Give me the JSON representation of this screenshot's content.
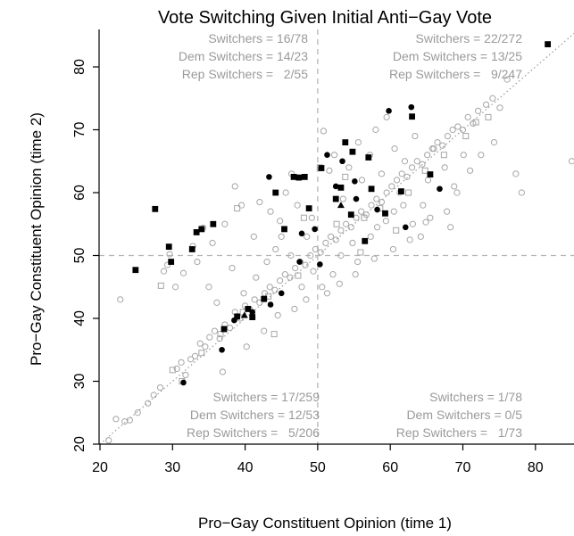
{
  "chart_data": {
    "type": "scatter",
    "title": "Vote Switching Given Initial Anti−Gay Vote",
    "xlabel": "Pro−Gay Constituent Opinion (time 1)",
    "ylabel": "Pro−Gay Constituent Opinion (time 2)",
    "xlim": [
      20,
      85
    ],
    "ylim": [
      20,
      86
    ],
    "x_ticks": [
      20,
      30,
      40,
      50,
      60,
      70,
      80
    ],
    "y_ticks": [
      20,
      30,
      40,
      50,
      60,
      70,
      80
    ],
    "reference_lines": {
      "vertical_x": 50,
      "horizontal_y": 50,
      "diagonal": "y = x"
    },
    "quadrant_annotations": [
      {
        "quadrant": "top-left",
        "lines": [
          "Switchers = 16/78",
          "Dem Switchers = 14/23",
          "Rep Switchers =   2/55"
        ]
      },
      {
        "quadrant": "top-right",
        "lines": [
          "Switchers = 22/272",
          "Dem Switchers = 13/25",
          "Rep Switchers =   9/247"
        ]
      },
      {
        "quadrant": "bottom-left",
        "lines": [
          "Switchers = 17/259",
          "Dem Switchers = 12/53",
          "Rep Switchers =   5/206"
        ]
      },
      {
        "quadrant": "bottom-right",
        "lines": [
          "Switchers = 1/78",
          "Dem Switchers = 0/5",
          "Rep Switchers =   1/73"
        ]
      }
    ],
    "colors": {
      "non_switcher": "#a6a6a6",
      "switcher": "#000000",
      "guide": "#b5b5b5",
      "axis": "#000000"
    },
    "series": [
      {
        "marker": "open-circle",
        "color": "#a6a6a6",
        "points": [
          [
            21.2,
            20.6
          ],
          [
            22.2,
            24
          ],
          [
            22.8,
            43
          ],
          [
            23.4,
            23.6
          ],
          [
            24.1,
            23.8
          ],
          [
            25.2,
            25
          ],
          [
            26.6,
            26.5
          ],
          [
            27.4,
            27.8
          ],
          [
            28.3,
            29
          ],
          [
            28.8,
            47.5
          ],
          [
            29.3,
            48.5
          ],
          [
            29.6,
            50.2
          ],
          [
            30.6,
            32
          ],
          [
            31.2,
            33
          ],
          [
            31.8,
            31
          ],
          [
            32.5,
            33.5
          ],
          [
            33.1,
            34
          ],
          [
            33.8,
            36
          ],
          [
            34.5,
            35.5
          ],
          [
            35.1,
            37
          ],
          [
            35.8,
            38
          ],
          [
            36.5,
            36.8
          ],
          [
            37.2,
            39
          ],
          [
            37.9,
            38.5
          ],
          [
            38.6,
            41
          ],
          [
            39.3,
            40
          ],
          [
            40,
            42
          ],
          [
            40.6,
            41.5
          ],
          [
            41.3,
            43
          ],
          [
            42,
            42.5
          ],
          [
            42.7,
            44
          ],
          [
            43.4,
            45
          ],
          [
            44.1,
            44.5
          ],
          [
            44.8,
            46
          ],
          [
            45.5,
            47
          ],
          [
            46.2,
            46.5
          ],
          [
            46.9,
            48
          ],
          [
            47.6,
            49
          ],
          [
            48.3,
            48.5
          ],
          [
            49,
            50
          ],
          [
            49.7,
            51
          ],
          [
            50.4,
            50.5
          ],
          [
            51.1,
            52
          ],
          [
            51.8,
            53
          ],
          [
            52.5,
            52.5
          ],
          [
            53.2,
            54
          ],
          [
            53.9,
            55
          ],
          [
            54.6,
            54.5
          ],
          [
            55.3,
            56
          ],
          [
            56,
            57
          ],
          [
            56.7,
            56.5
          ],
          [
            57.4,
            58
          ],
          [
            58.1,
            59
          ],
          [
            58.8,
            58.5
          ],
          [
            59.5,
            60
          ],
          [
            60.2,
            61
          ],
          [
            60.9,
            62
          ],
          [
            61.6,
            63
          ],
          [
            62.3,
            62.5
          ],
          [
            63,
            64
          ],
          [
            63.7,
            65
          ],
          [
            64.4,
            64.5
          ],
          [
            65.1,
            66
          ],
          [
            65.8,
            67
          ],
          [
            66.5,
            68
          ],
          [
            67.2,
            67.5
          ],
          [
            67.9,
            69
          ],
          [
            68.6,
            70
          ],
          [
            69.3,
            70.5
          ],
          [
            70,
            70
          ],
          [
            70.7,
            72
          ],
          [
            71.4,
            71
          ],
          [
            72.1,
            73
          ],
          [
            73.2,
            74
          ],
          [
            74.1,
            75
          ],
          [
            75.1,
            73.5
          ],
          [
            76.1,
            78
          ],
          [
            77.3,
            63
          ],
          [
            78.1,
            60
          ],
          [
            85,
            65
          ],
          [
            34.2,
            54.4
          ],
          [
            35.5,
            52
          ],
          [
            37.2,
            55
          ],
          [
            38.6,
            61
          ],
          [
            39.5,
            58
          ],
          [
            41.2,
            53
          ],
          [
            42,
            58.5
          ],
          [
            43.5,
            57
          ],
          [
            44.8,
            55.5
          ],
          [
            45.6,
            60
          ],
          [
            46.4,
            63
          ],
          [
            47.2,
            58
          ],
          [
            48.5,
            53
          ],
          [
            49.2,
            56
          ],
          [
            50.8,
            69.8
          ],
          [
            51.6,
            63.5
          ],
          [
            52.3,
            66
          ],
          [
            53.5,
            59
          ],
          [
            54.3,
            64
          ],
          [
            55.6,
            68
          ],
          [
            56.1,
            62
          ],
          [
            57.2,
            66
          ],
          [
            58,
            70
          ],
          [
            58.8,
            63
          ],
          [
            59.5,
            72
          ],
          [
            60.6,
            67
          ],
          [
            61.3,
            60
          ],
          [
            62,
            65
          ],
          [
            63.4,
            69
          ],
          [
            64.5,
            58
          ],
          [
            65.2,
            62
          ],
          [
            66,
            67
          ],
          [
            67.5,
            64
          ],
          [
            68.8,
            61
          ],
          [
            70.1,
            66
          ],
          [
            71,
            63.5
          ],
          [
            30.4,
            45
          ],
          [
            31.5,
            47.2
          ],
          [
            32.8,
            51.5
          ],
          [
            33.4,
            49
          ],
          [
            35,
            45
          ],
          [
            36.1,
            42.5
          ],
          [
            38.2,
            48
          ],
          [
            39.8,
            44
          ],
          [
            41.5,
            46.5
          ],
          [
            43,
            49
          ],
          [
            44.2,
            51
          ],
          [
            45,
            53
          ],
          [
            46.3,
            50
          ],
          [
            47.8,
            45
          ],
          [
            49.4,
            47.5
          ],
          [
            50.6,
            45
          ],
          [
            52.1,
            47
          ],
          [
            53.2,
            50
          ],
          [
            54.8,
            52
          ],
          [
            55.5,
            49
          ],
          [
            57.3,
            53
          ],
          [
            58.2,
            54.5
          ],
          [
            59.4,
            55.5
          ],
          [
            60.5,
            57
          ],
          [
            61.8,
            58
          ],
          [
            63.1,
            55
          ],
          [
            64.2,
            53
          ],
          [
            65.5,
            56
          ],
          [
            67.8,
            57
          ],
          [
            69.2,
            60
          ],
          [
            72.5,
            66
          ],
          [
            74.3,
            68
          ],
          [
            36.9,
            31.5
          ],
          [
            40.2,
            35.5
          ],
          [
            42.6,
            38
          ],
          [
            44.5,
            40.5
          ],
          [
            46.8,
            41.5
          ],
          [
            48.4,
            43
          ],
          [
            51.3,
            44
          ],
          [
            53,
            45.5
          ],
          [
            55.2,
            47
          ],
          [
            57.8,
            49.5
          ],
          [
            60.4,
            51
          ],
          [
            62.7,
            52.5
          ],
          [
            64.9,
            55.3
          ],
          [
            68.3,
            54.5
          ]
        ]
      },
      {
        "marker": "open-square",
        "color": "#a6a6a6",
        "points": [
          [
            28.4,
            45.2
          ],
          [
            30,
            31.8
          ],
          [
            31.3,
            30
          ],
          [
            34,
            34.5
          ],
          [
            36.6,
            37.5
          ],
          [
            39.7,
            41
          ],
          [
            43.2,
            43.5
          ],
          [
            47.3,
            46.8
          ],
          [
            48.1,
            56
          ],
          [
            50.3,
            64
          ],
          [
            52.6,
            55
          ],
          [
            53.8,
            62.5
          ],
          [
            56.4,
            56
          ],
          [
            58.6,
            57.5
          ],
          [
            62.5,
            60
          ],
          [
            64.8,
            63.5
          ],
          [
            67.4,
            66
          ],
          [
            70.4,
            69
          ],
          [
            71.8,
            71.2
          ],
          [
            73.5,
            72
          ],
          [
            44,
            37.5
          ],
          [
            55.9,
            50.5
          ],
          [
            60.8,
            54
          ],
          [
            38.9,
            57.5
          ]
        ]
      },
      {
        "marker": "filled-circle",
        "color": "#000000",
        "points": [
          [
            31.5,
            29.8
          ],
          [
            36.8,
            35
          ],
          [
            38.5,
            39.7
          ],
          [
            41,
            41
          ],
          [
            43.5,
            42.2
          ],
          [
            45,
            44
          ],
          [
            47.5,
            49
          ],
          [
            49.6,
            54.2
          ],
          [
            50.3,
            48.6
          ],
          [
            51.3,
            66
          ],
          [
            52.5,
            61
          ],
          [
            53.4,
            65
          ],
          [
            55.3,
            59
          ],
          [
            58.2,
            57.3
          ],
          [
            59.8,
            73
          ],
          [
            62.1,
            54.5
          ],
          [
            62.9,
            73.6
          ],
          [
            66.8,
            60.6
          ],
          [
            43.3,
            62.5
          ],
          [
            47.8,
            53.5
          ],
          [
            55.1,
            61.8
          ]
        ]
      },
      {
        "marker": "filled-square",
        "color": "#000000",
        "points": [
          [
            24.9,
            47.7
          ],
          [
            27.6,
            57.4
          ],
          [
            29.5,
            51.4
          ],
          [
            29.8,
            49
          ],
          [
            32.7,
            51
          ],
          [
            33.3,
            53.7
          ],
          [
            34,
            54.2
          ],
          [
            35.6,
            55
          ],
          [
            37.1,
            38.3
          ],
          [
            38.9,
            40.3
          ],
          [
            40.4,
            41.5
          ],
          [
            41,
            40.2
          ],
          [
            42.6,
            43.1
          ],
          [
            44.2,
            60
          ],
          [
            45.4,
            54.2
          ],
          [
            46.7,
            62.5
          ],
          [
            47.4,
            62.4
          ],
          [
            48.2,
            62.5
          ],
          [
            48.8,
            57.5
          ],
          [
            50.5,
            63.9
          ],
          [
            52.5,
            59
          ],
          [
            53.8,
            68
          ],
          [
            54.8,
            66.5
          ],
          [
            57,
            65.6
          ],
          [
            57.4,
            60.6
          ],
          [
            59.3,
            56.7
          ],
          [
            61.5,
            60.2
          ],
          [
            63,
            72.1
          ],
          [
            65.5,
            62.9
          ],
          [
            81.7,
            83.6
          ],
          [
            56.5,
            52.3
          ],
          [
            54.6,
            56.5
          ],
          [
            53.2,
            60.8
          ]
        ]
      },
      {
        "marker": "filled-triangle",
        "color": "#000000",
        "points": [
          [
            39.9,
            40.5
          ],
          [
            53.2,
            58
          ]
        ]
      }
    ]
  }
}
